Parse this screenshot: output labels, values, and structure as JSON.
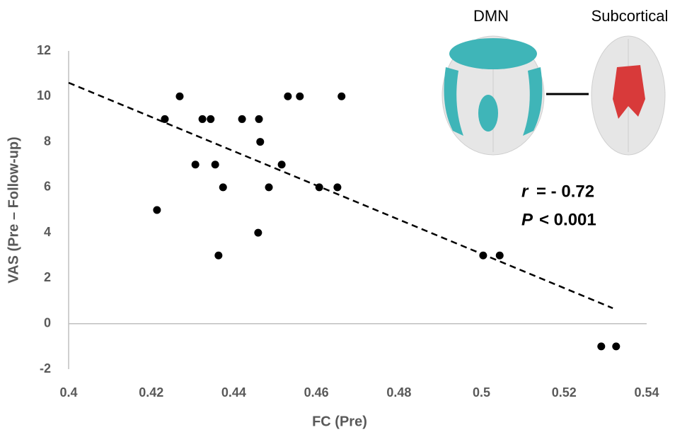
{
  "chart_data": {
    "type": "scatter",
    "x_label": "FC (Pre)",
    "y_label": "VAS (Pre – Follow-up)",
    "x": [
      0.4214,
      0.4233,
      0.4269,
      0.4307,
      0.4324,
      0.4344,
      0.4355,
      0.4363,
      0.4374,
      0.442,
      0.4461,
      0.4464,
      0.4459,
      0.4485,
      0.4516,
      0.4531,
      0.456,
      0.4607,
      0.4651,
      0.4661,
      0.5004,
      0.5044,
      0.529,
      0.5326
    ],
    "values": [
      5,
      9,
      10,
      7,
      9,
      9,
      7,
      3,
      6,
      9,
      9,
      8,
      4,
      6,
      7,
      10,
      10,
      6,
      6,
      10,
      3,
      3,
      -1,
      -1
    ],
    "color": "#000000",
    "trendline": {
      "x": [
        0.4,
        0.5318
      ],
      "y": [
        10.6,
        0.68
      ]
    },
    "xlim": [
      0.4,
      0.54
    ],
    "xticks": [
      0.4,
      0.42,
      0.44,
      0.46,
      0.48,
      0.5,
      0.52,
      0.54
    ],
    "ylim": [
      -2,
      12
    ],
    "yticks": [
      -2,
      0,
      2,
      4,
      6,
      8,
      10,
      12
    ],
    "annotations": [
      {
        "symbol": "r",
        "text": "= - 0.72"
      },
      {
        "symbol": "P",
        "text": "< 0.001"
      }
    ],
    "images": [
      "DMN",
      "Subcortical"
    ]
  }
}
